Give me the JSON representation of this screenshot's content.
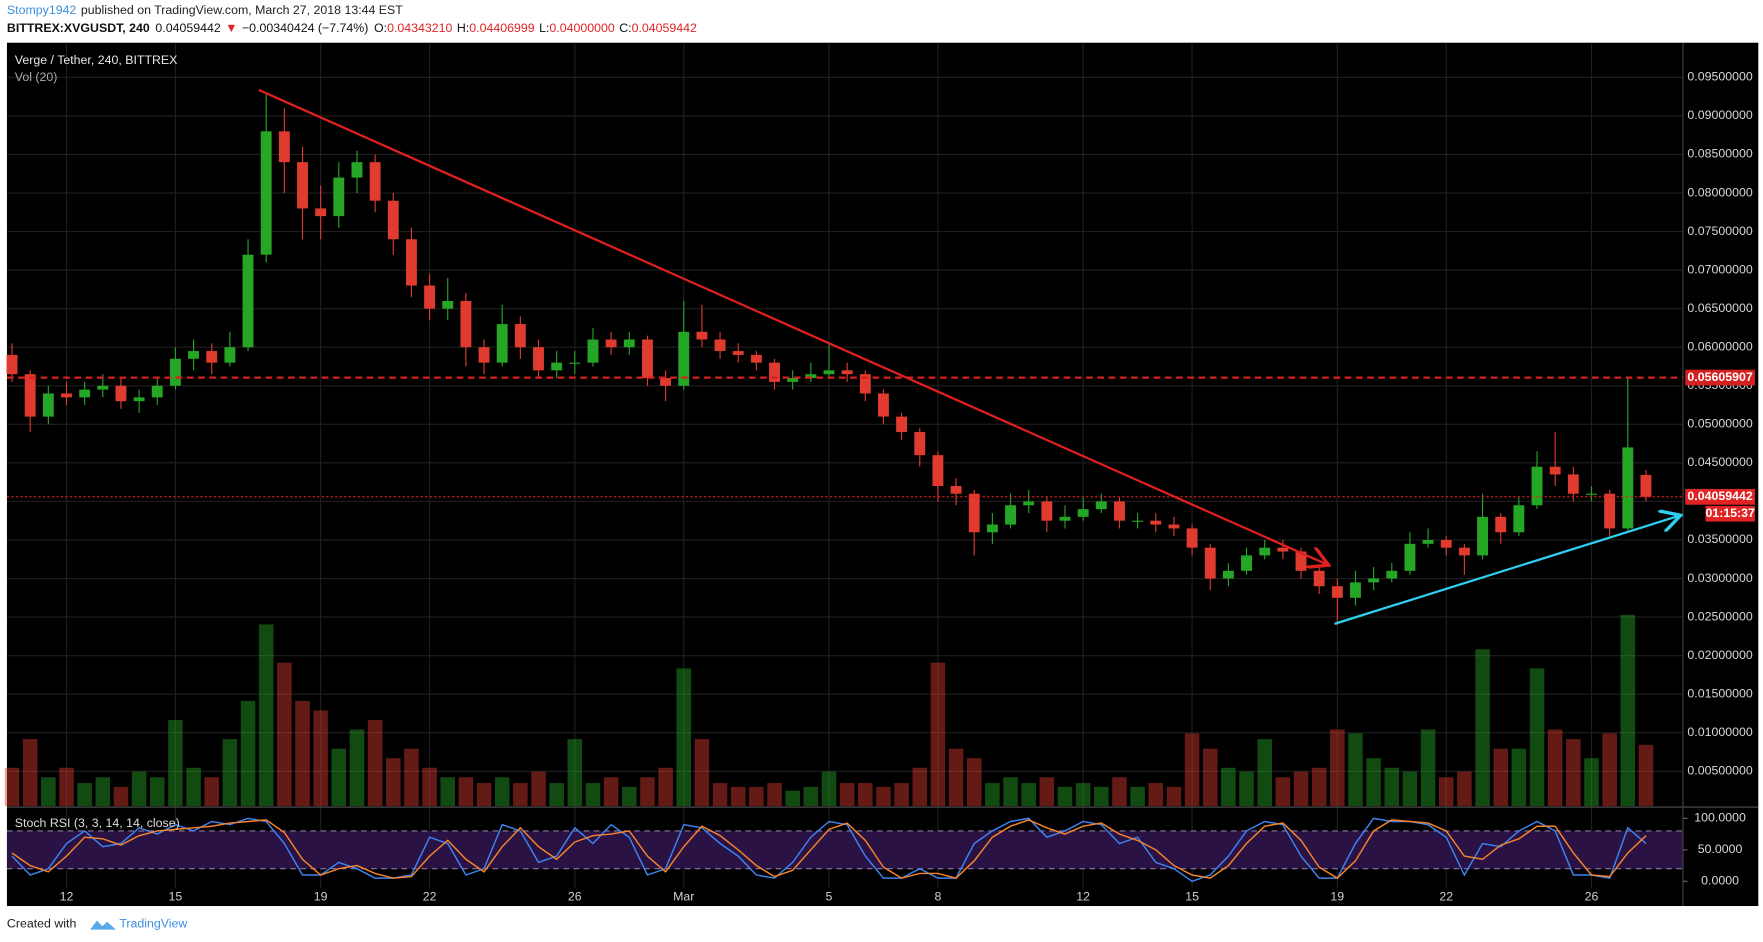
{
  "header": {
    "author": "Stompy1942",
    "published": "published on TradingView.com, March 27, 2018 13:44 EST",
    "symbol": "BITTREX:XVGUSDT, 240",
    "last": "0.04059442",
    "arrow": "▼",
    "change": "−0.00340424 (−7.74%)",
    "ohlc": [
      {
        "label": "O:",
        "value": "0.04343210"
      },
      {
        "label": "H:",
        "value": "0.04406999"
      },
      {
        "label": "L:",
        "value": "0.04000000"
      },
      {
        "label": "C:",
        "value": "0.04059442"
      }
    ]
  },
  "chart_data": [
    {
      "type": "candlestick",
      "title": "Verge / Tether, 240, BITTREX",
      "up_color": "#26a626",
      "down_color": "#e03b2e",
      "x": [
        10.5,
        11,
        11.5,
        12,
        12.5,
        13,
        13.5,
        14,
        14.5,
        15,
        15.5,
        16,
        16.5,
        17,
        17.5,
        18,
        18.5,
        19,
        19.5,
        20,
        20.5,
        21,
        21.5,
        22,
        22.5,
        23,
        23.5,
        24,
        24.5,
        25,
        25.5,
        26,
        26.5,
        27,
        27.5,
        28,
        28.5,
        29,
        29.5,
        30,
        30.5,
        31,
        31.5,
        32,
        32.5,
        33,
        33.5,
        34,
        34.5,
        35,
        35.5,
        36,
        36.5,
        37,
        37.5,
        38,
        38.5,
        39,
        39.5,
        40,
        40.5,
        41,
        41.5,
        42,
        42.5,
        43,
        43.5,
        44,
        44.5,
        45,
        45.5,
        46,
        46.5,
        47,
        47.5,
        48,
        48.5,
        49,
        49.5,
        50,
        50.5,
        51,
        51.5,
        52,
        52.5,
        53,
        53.5,
        54,
        54.5,
        55,
        55.5
      ],
      "open": [
        0.059,
        0.0565,
        0.051,
        0.054,
        0.0535,
        0.0545,
        0.055,
        0.053,
        0.0535,
        0.055,
        0.0585,
        0.0595,
        0.058,
        0.06,
        0.072,
        0.088,
        0.084,
        0.078,
        0.077,
        0.082,
        0.084,
        0.079,
        0.074,
        0.068,
        0.065,
        0.066,
        0.06,
        0.058,
        0.063,
        0.06,
        0.057,
        0.058,
        0.058,
        0.061,
        0.06,
        0.061,
        0.056,
        0.055,
        0.062,
        0.061,
        0.0595,
        0.059,
        0.058,
        0.0555,
        0.056,
        0.0565,
        0.057,
        0.0565,
        0.054,
        0.051,
        0.049,
        0.046,
        0.042,
        0.041,
        0.036,
        0.037,
        0.0395,
        0.04,
        0.0375,
        0.038,
        0.039,
        0.04,
        0.0375,
        0.0375,
        0.037,
        0.0365,
        0.034,
        0.03,
        0.031,
        0.033,
        0.034,
        0.0335,
        0.031,
        0.029,
        0.0275,
        0.0295,
        0.03,
        0.031,
        0.0345,
        0.035,
        0.034,
        0.033,
        0.038,
        0.036,
        0.0395,
        0.0445,
        0.0435,
        0.041,
        0.041,
        0.0365,
        0.0434321
      ],
      "high": [
        0.0605,
        0.057,
        0.055,
        0.0555,
        0.0555,
        0.0565,
        0.056,
        0.0545,
        0.056,
        0.06,
        0.061,
        0.0605,
        0.062,
        0.074,
        0.093,
        0.091,
        0.086,
        0.081,
        0.084,
        0.0855,
        0.085,
        0.08,
        0.0755,
        0.0695,
        0.069,
        0.067,
        0.061,
        0.0655,
        0.064,
        0.061,
        0.0595,
        0.0595,
        0.0625,
        0.062,
        0.062,
        0.0615,
        0.057,
        0.066,
        0.0655,
        0.062,
        0.0605,
        0.0595,
        0.0585,
        0.057,
        0.058,
        0.0605,
        0.058,
        0.057,
        0.0545,
        0.0515,
        0.0495,
        0.0465,
        0.043,
        0.0415,
        0.0385,
        0.041,
        0.0415,
        0.0405,
        0.0395,
        0.0405,
        0.041,
        0.0405,
        0.0385,
        0.0385,
        0.038,
        0.037,
        0.0345,
        0.032,
        0.034,
        0.035,
        0.035,
        0.034,
        0.0315,
        0.03,
        0.031,
        0.0315,
        0.032,
        0.036,
        0.0365,
        0.0355,
        0.0345,
        0.041,
        0.0385,
        0.0405,
        0.0465,
        0.049,
        0.0445,
        0.042,
        0.0415,
        0.056,
        0.04406999
      ],
      "low": [
        0.0555,
        0.049,
        0.05,
        0.0525,
        0.0525,
        0.0535,
        0.052,
        0.0515,
        0.0525,
        0.0545,
        0.057,
        0.0565,
        0.0575,
        0.0595,
        0.071,
        0.08,
        0.074,
        0.074,
        0.0755,
        0.08,
        0.0775,
        0.072,
        0.0665,
        0.0635,
        0.0635,
        0.0575,
        0.0565,
        0.0575,
        0.0585,
        0.056,
        0.056,
        0.0565,
        0.0575,
        0.059,
        0.059,
        0.055,
        0.053,
        0.0545,
        0.06,
        0.0585,
        0.058,
        0.057,
        0.0545,
        0.0545,
        0.0555,
        0.056,
        0.0555,
        0.053,
        0.05,
        0.048,
        0.0445,
        0.04,
        0.0395,
        0.033,
        0.0345,
        0.0365,
        0.0385,
        0.036,
        0.0365,
        0.0375,
        0.0385,
        0.0365,
        0.0365,
        0.036,
        0.0355,
        0.033,
        0.0285,
        0.029,
        0.0305,
        0.0325,
        0.0325,
        0.03,
        0.028,
        0.024,
        0.0265,
        0.0285,
        0.0295,
        0.0305,
        0.034,
        0.033,
        0.0305,
        0.0325,
        0.0345,
        0.0355,
        0.039,
        0.042,
        0.04,
        0.04,
        0.0355,
        0.036,
        0.04
      ],
      "close": [
        0.0565,
        0.051,
        0.054,
        0.0535,
        0.0545,
        0.055,
        0.053,
        0.0535,
        0.055,
        0.0585,
        0.0595,
        0.058,
        0.06,
        0.072,
        0.088,
        0.084,
        0.078,
        0.077,
        0.082,
        0.084,
        0.079,
        0.074,
        0.068,
        0.065,
        0.066,
        0.06,
        0.058,
        0.063,
        0.06,
        0.057,
        0.058,
        0.058,
        0.061,
        0.06,
        0.061,
        0.056,
        0.055,
        0.062,
        0.061,
        0.0595,
        0.059,
        0.058,
        0.0555,
        0.056,
        0.0565,
        0.057,
        0.0565,
        0.054,
        0.051,
        0.049,
        0.046,
        0.042,
        0.041,
        0.036,
        0.037,
        0.0395,
        0.04,
        0.0375,
        0.038,
        0.039,
        0.04,
        0.0375,
        0.0375,
        0.037,
        0.0365,
        0.034,
        0.03,
        0.031,
        0.033,
        0.034,
        0.0335,
        0.031,
        0.029,
        0.0275,
        0.0295,
        0.03,
        0.031,
        0.0345,
        0.035,
        0.034,
        0.033,
        0.038,
        0.036,
        0.0395,
        0.0445,
        0.0435,
        0.041,
        0.041,
        0.0365,
        0.047,
        0.04059442
      ],
      "volume_title": "Vol (20)",
      "volume": [
        20,
        35,
        15,
        20,
        12,
        15,
        10,
        18,
        15,
        45,
        20,
        15,
        35,
        55,
        95,
        75,
        55,
        50,
        30,
        40,
        45,
        25,
        30,
        20,
        15,
        15,
        12,
        15,
        12,
        18,
        12,
        35,
        12,
        15,
        10,
        15,
        20,
        72,
        35,
        12,
        10,
        10,
        12,
        8,
        10,
        18,
        12,
        12,
        10,
        12,
        20,
        75,
        30,
        25,
        12,
        15,
        12,
        15,
        10,
        12,
        10,
        15,
        10,
        12,
        10,
        38,
        30,
        20,
        18,
        35,
        15,
        18,
        20,
        40,
        38,
        25,
        20,
        18,
        40,
        15,
        18,
        82,
        30,
        30,
        72,
        40,
        35,
        25,
        38,
        100,
        32
      ],
      "xlim": [
        10.36,
        56.52
      ],
      "xticks": [
        12,
        15,
        19,
        22,
        26,
        {
          "value": 29,
          "label": "Mar"
        },
        {
          "value": 33,
          "label": "5"
        },
        {
          "value": 36,
          "label": "8"
        },
        {
          "value": 40,
          "label": "12"
        },
        {
          "value": 43,
          "label": "15"
        },
        {
          "value": 47,
          "label": "19"
        },
        {
          "value": 50,
          "label": "22"
        },
        {
          "value": 54,
          "label": "26"
        }
      ],
      "ylim": [
        0.0005,
        0.0992
      ],
      "yticks": [
        {
          "value": 0.005,
          "label": "0.00500000"
        },
        {
          "value": 0.01,
          "label": "0.01000000"
        },
        {
          "value": 0.015,
          "label": "0.01500000"
        },
        {
          "value": 0.02,
          "label": "0.02000000"
        },
        {
          "value": 0.025,
          "label": "0.02500000"
        },
        {
          "value": 0.03,
          "label": "0.03000000"
        },
        {
          "value": 0.035,
          "label": "0.03500000"
        },
        {
          "value": 0.04,
          "label": "0.04000000"
        },
        {
          "value": 0.045,
          "label": "0.04500000"
        },
        {
          "value": 0.05,
          "label": "0.05000000"
        },
        {
          "value": 0.055,
          "label": "0.05500000"
        },
        {
          "value": 0.06,
          "label": "0.06000000"
        },
        {
          "value": 0.065,
          "label": "0.06500000"
        },
        {
          "value": 0.07,
          "label": "0.07000000"
        },
        {
          "value": 0.075,
          "label": "0.07500000"
        },
        {
          "value": 0.08,
          "label": "0.08000000"
        },
        {
          "value": 0.085,
          "label": "0.08500000"
        },
        {
          "value": 0.09,
          "label": "0.09000000"
        },
        {
          "value": 0.095,
          "label": "0.09500000"
        }
      ],
      "grid": true,
      "price_lines": [
        {
          "value": 0.05605907,
          "style": "dashed",
          "color": "#d42020"
        },
        {
          "value": 0.04059442,
          "style": "dotted",
          "color": "#e02424",
          "countdown": "01:15:37"
        }
      ]
    },
    {
      "type": "line",
      "title": "Stoch RSI (3, 3, 14, 14, close)",
      "ylim": [
        -37.5,
        114.3
      ],
      "yticks": [
        {
          "value": 0,
          "label": "0.0000"
        },
        {
          "value": 50,
          "label": "50.0000"
        },
        {
          "value": 100,
          "label": "100.0000"
        }
      ],
      "bands": [
        20,
        80
      ],
      "series": [
        {
          "color": "#3d83f0",
          "values": [
            40,
            10,
            20,
            60,
            80,
            55,
            60,
            85,
            75,
            90,
            80,
            95,
            90,
            100,
            95,
            60,
            10,
            10,
            30,
            20,
            5,
            5,
            10,
            70,
            60,
            10,
            20,
            90,
            80,
            30,
            40,
            85,
            60,
            90,
            70,
            10,
            20,
            90,
            85,
            60,
            40,
            10,
            5,
            30,
            70,
            95,
            90,
            40,
            5,
            5,
            20,
            5,
            5,
            60,
            80,
            95,
            100,
            70,
            80,
            95,
            90,
            60,
            70,
            30,
            20,
            0,
            10,
            40,
            80,
            95,
            90,
            40,
            5,
            5,
            60,
            100,
            95,
            95,
            90,
            70,
            10,
            60,
            55,
            80,
            95,
            80,
            10,
            10,
            5,
            85,
            60
          ]
        },
        {
          "color": "#f5842a",
          "values": [
            45,
            25,
            15,
            40,
            70,
            67.5,
            57.5,
            72.5,
            80,
            82.5,
            85,
            87.5,
            92.5,
            95,
            97.5,
            77.5,
            35,
            10,
            20,
            25,
            12.5,
            5,
            7.5,
            40,
            65,
            35,
            15,
            55,
            85,
            55,
            35,
            62.5,
            72.5,
            75,
            80,
            40,
            15,
            55,
            87.5,
            72.5,
            50,
            25,
            7.5,
            17.5,
            50,
            82.5,
            92.5,
            65,
            22.5,
            5,
            12.5,
            12.5,
            5,
            32.5,
            70,
            87.5,
            97.5,
            85,
            75,
            87.5,
            92.5,
            75,
            65,
            50,
            25,
            10,
            5,
            25,
            60,
            87.5,
            92.5,
            65,
            22.5,
            5,
            32.5,
            80,
            97.5,
            95,
            92.5,
            80,
            40,
            35,
            57.5,
            67.5,
            87.5,
            87.5,
            45,
            10,
            7.5,
            45,
            72.5
          ]
        }
      ]
    }
  ],
  "footer": {
    "text": "Created with",
    "brand": "TradingView"
  }
}
